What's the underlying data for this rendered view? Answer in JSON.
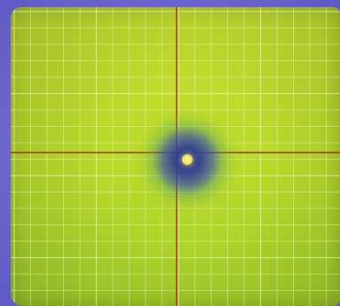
{
  "scene": {
    "colors": {
      "background": "#6f6ad0",
      "screen": "#b9d92a",
      "grid": "#eaf3b4",
      "crosshair": "#a23a26",
      "spot_dark": "#2e3c96",
      "spot_core": "#f4e35a"
    },
    "icons": {
      "center_marker": "target-dot-icon"
    }
  }
}
